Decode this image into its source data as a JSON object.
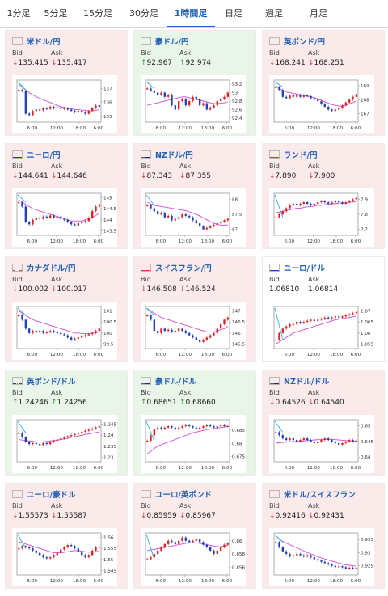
{
  "tabs": [
    {
      "label": "1分足",
      "active": false
    },
    {
      "label": "5分足",
      "active": false
    },
    {
      "label": "15分足",
      "active": false
    },
    {
      "label": "30分足",
      "active": false
    },
    {
      "label": "1時間足",
      "active": true
    },
    {
      "label": "日足",
      "active": false
    },
    {
      "label": "週足",
      "active": false
    },
    {
      "label": "月足",
      "active": false
    }
  ],
  "bid_label": "Bid",
  "ask_label": "Ask",
  "cards": [
    {
      "pair": "米ドル/円",
      "flag": "us",
      "dir": "down",
      "bid": "135.415",
      "ask": "135.417",
      "chart": {
        "ticks": [
          "137",
          "136",
          "135"
        ],
        "ylim": [
          134.6,
          137.6
        ],
        "xlabels": [
          "6:00",
          "12:00",
          "18:00",
          "6:00"
        ],
        "prices": [
          136.9,
          136.8,
          135.2,
          135.1,
          135.4,
          135.5,
          135.45,
          135.6,
          135.55,
          135.7,
          135.6,
          135.65,
          135.55,
          135.6,
          135.5,
          135.4,
          135.3,
          135.4,
          135.3,
          135.2,
          135.4,
          135.6,
          135.8,
          135.7
        ],
        "ma": [
          137.3,
          137.1,
          136.9,
          136.7,
          136.55,
          136.4,
          136.3,
          136.2,
          136.1,
          136.0,
          135.9,
          135.8,
          135.7,
          135.65,
          135.6,
          135.55,
          135.5,
          135.5,
          135.45,
          135.45,
          135.4,
          135.4,
          135.45,
          135.5
        ]
      }
    },
    {
      "pair": "豪ドル/円",
      "flag": "au",
      "dir": "up",
      "bid": "92.967",
      "ask": "92.974",
      "chart": {
        "ticks": [
          "93.2",
          "93",
          "92.8",
          "92.6",
          "92.4"
        ],
        "ylim": [
          92.3,
          93.3
        ],
        "xlabels": [
          "6:00",
          "12:00",
          "18:00",
          "6:00"
        ],
        "prices": [
          93.1,
          93.05,
          93.0,
          92.95,
          93.0,
          92.9,
          92.95,
          92.7,
          92.6,
          92.8,
          92.85,
          92.7,
          92.8,
          92.9,
          92.85,
          92.7,
          92.75,
          92.6,
          92.65,
          92.7,
          92.8,
          92.85,
          92.9,
          93.0
        ],
        "ma": [
          92.7,
          92.72,
          92.74,
          92.76,
          92.78,
          92.8,
          92.82,
          92.84,
          92.86,
          92.88,
          92.9,
          92.9,
          92.88,
          92.86,
          92.84,
          92.82,
          92.8,
          92.78,
          92.76,
          92.74,
          92.74,
          92.75,
          92.76,
          92.78
        ]
      }
    },
    {
      "pair": "英ポンド/円",
      "flag": "gb",
      "dir": "down",
      "bid": "168.241",
      "ask": "168.251",
      "chart": {
        "ticks": [
          "169",
          "168",
          "167"
        ],
        "ylim": [
          166.4,
          169.4
        ],
        "xlabels": [
          "6:00",
          "12:00",
          "18:00",
          "6:00"
        ],
        "prices": [
          168.9,
          168.7,
          168.2,
          168.1,
          168.3,
          168.2,
          168.35,
          168.2,
          168.3,
          168.25,
          168.1,
          168.0,
          167.9,
          167.7,
          167.5,
          167.3,
          167.2,
          167.3,
          167.4,
          167.6,
          167.8,
          168.0,
          168.2,
          168.4
        ],
        "ma": [
          169.0,
          168.8,
          168.65,
          168.55,
          168.5,
          168.45,
          168.4,
          168.35,
          168.3,
          168.25,
          168.2,
          168.15,
          168.05,
          167.95,
          167.85,
          167.75,
          167.65,
          167.6,
          167.55,
          167.55,
          167.6,
          167.7,
          167.8,
          167.9
        ]
      }
    },
    {
      "pair": "ユーロ/円",
      "flag": "eu",
      "dir": "down",
      "bid": "144.641",
      "ask": "144.646",
      "chart": {
        "ticks": [
          "145",
          "144.5",
          "144",
          "143.5"
        ],
        "ylim": [
          143.3,
          145.2
        ],
        "xlabels": [
          "6:00",
          "12:00",
          "18:00",
          "6:00"
        ],
        "prices": [
          144.8,
          144.6,
          143.9,
          143.8,
          144.0,
          144.1,
          144.05,
          144.15,
          144.1,
          144.2,
          144.1,
          144.15,
          144.05,
          144.0,
          143.9,
          143.8,
          143.75,
          143.85,
          143.9,
          143.95,
          144.1,
          144.4,
          144.6,
          144.7
        ],
        "ma": [
          144.9,
          144.8,
          144.7,
          144.6,
          144.5,
          144.45,
          144.4,
          144.35,
          144.3,
          144.25,
          144.2,
          144.15,
          144.1,
          144.05,
          144.0,
          143.95,
          143.95,
          143.95,
          143.95,
          144.0,
          144.05,
          144.1,
          144.2,
          144.3
        ]
      }
    },
    {
      "pair": "NZドル/円",
      "flag": "nz",
      "dir": "down",
      "bid": "87.343",
      "ask": "87.355",
      "chart": {
        "ticks": [
          "88",
          "87.5",
          "87"
        ],
        "ylim": [
          86.8,
          88.2
        ],
        "xlabels": [
          "6:00",
          "12:00",
          "18:00",
          "6:00"
        ],
        "prices": [
          87.8,
          87.7,
          87.6,
          87.5,
          87.55,
          87.4,
          87.45,
          87.3,
          87.35,
          87.4,
          87.5,
          87.45,
          87.4,
          87.3,
          87.2,
          87.1,
          87.0,
          87.05,
          87.1,
          87.15,
          87.2,
          87.25,
          87.3,
          87.35
        ],
        "ma": [
          87.9,
          87.85,
          87.8,
          87.78,
          87.76,
          87.74,
          87.72,
          87.7,
          87.68,
          87.66,
          87.64,
          87.62,
          87.58,
          87.54,
          87.5,
          87.44,
          87.38,
          87.32,
          87.26,
          87.2,
          87.16,
          87.14,
          87.14,
          87.15
        ]
      }
    },
    {
      "pair": "ランド/円",
      "flag": "za",
      "dir": "down",
      "bid": "7.890",
      "ask": "7.900",
      "chart": {
        "ticks": [
          "7.9",
          "7.8",
          "7.7"
        ],
        "ylim": [
          7.66,
          7.94
        ],
        "xlabels": [
          "6:00",
          "12:00",
          "18:00",
          "6:00"
        ],
        "prices": [
          7.78,
          7.8,
          7.82,
          7.84,
          7.86,
          7.87,
          7.86,
          7.87,
          7.88,
          7.87,
          7.86,
          7.87,
          7.88,
          7.89,
          7.88,
          7.87,
          7.88,
          7.89,
          7.88,
          7.87,
          7.88,
          7.89,
          7.9,
          7.91
        ],
        "ma": [
          7.81,
          7.815,
          7.82,
          7.825,
          7.83,
          7.835,
          7.84,
          7.84,
          7.845,
          7.85,
          7.85,
          7.855,
          7.86,
          7.86,
          7.865,
          7.865,
          7.87,
          7.87,
          7.875,
          7.875,
          7.875,
          7.88,
          7.88,
          7.885
        ]
      }
    },
    {
      "pair": "カナダドル/円",
      "flag": "ca",
      "dir": "down",
      "bid": "100.002",
      "ask": "100.017",
      "chart": {
        "ticks": [
          "101",
          "100.5",
          "100",
          "99.5"
        ],
        "ylim": [
          99.3,
          101.2
        ],
        "xlabels": [
          "6:00",
          "12:00",
          "18:00",
          "6:00"
        ],
        "prices": [
          100.8,
          100.6,
          100.2,
          100.0,
          100.1,
          100.05,
          100.1,
          100.0,
          100.05,
          100.1,
          100.05,
          100.0,
          99.95,
          99.9,
          99.8,
          99.7,
          99.75,
          99.8,
          99.85,
          99.9,
          99.95,
          100.0,
          100.1,
          100.2
        ],
        "ma": [
          101.0,
          100.9,
          100.8,
          100.7,
          100.6,
          100.55,
          100.5,
          100.45,
          100.4,
          100.35,
          100.3,
          100.25,
          100.2,
          100.15,
          100.1,
          100.05,
          100.0,
          100.0,
          99.98,
          99.98,
          99.98,
          100.0,
          100.02,
          100.05
        ]
      }
    },
    {
      "pair": "スイスフラン/円",
      "flag": "ch",
      "dir": "down",
      "bid": "146.508",
      "ask": "146.524",
      "chart": {
        "ticks": [
          "147",
          "146.5",
          "146",
          "145.5"
        ],
        "ylim": [
          145.3,
          147.2
        ],
        "xlabels": [
          "6:00",
          "12:00",
          "18:00",
          "6:00"
        ],
        "prices": [
          146.8,
          146.6,
          146.1,
          146.0,
          146.2,
          146.1,
          146.15,
          146.05,
          146.1,
          146.2,
          146.1,
          146.0,
          145.9,
          145.8,
          145.7,
          145.6,
          145.7,
          145.8,
          145.9,
          146.0,
          146.2,
          146.4,
          146.6,
          146.7
        ],
        "ma": [
          147.1,
          147.0,
          146.9,
          146.8,
          146.7,
          146.65,
          146.6,
          146.55,
          146.5,
          146.45,
          146.4,
          146.35,
          146.3,
          146.25,
          146.2,
          146.15,
          146.1,
          146.05,
          146.05,
          146.05,
          146.1,
          146.15,
          146.2,
          146.3
        ]
      }
    },
    {
      "pair": "ユーロ/ドル",
      "flag": "eu",
      "dir": "flat",
      "bid": "1.06810",
      "ask": "1.06814",
      "chart": {
        "ticks": [
          "1.07",
          "1.065",
          "1.06",
          "1.055"
        ],
        "ylim": [
          1.053,
          1.072
        ],
        "xlabels": [
          "6:00",
          "12:00",
          "18:00",
          "6:00"
        ],
        "prices": [
          1.057,
          1.06,
          1.062,
          1.063,
          1.064,
          1.064,
          1.065,
          1.0645,
          1.065,
          1.0655,
          1.066,
          1.0655,
          1.066,
          1.0665,
          1.067,
          1.0665,
          1.067,
          1.0675,
          1.067,
          1.0675,
          1.068,
          1.0685,
          1.069,
          1.0695
        ],
        "ma": [
          1.055,
          1.056,
          1.057,
          1.058,
          1.059,
          1.06,
          1.0605,
          1.061,
          1.0615,
          1.062,
          1.0625,
          1.063,
          1.0635,
          1.064,
          1.0645,
          1.065,
          1.0655,
          1.066,
          1.0662,
          1.0665,
          1.0668,
          1.067,
          1.0673,
          1.0676
        ]
      }
    },
    {
      "pair": "英ポンド/ドル",
      "flag": "gb",
      "dir": "up",
      "bid": "1.24246",
      "ask": "1.24256",
      "chart": {
        "ticks": [
          "1.245",
          "1.24",
          "1.235",
          "1.23"
        ],
        "ylim": [
          1.228,
          1.247
        ],
        "xlabels": [
          "6:00",
          "12:00",
          "18:00",
          "6:00"
        ],
        "prices": [
          1.241,
          1.239,
          1.237,
          1.236,
          1.2365,
          1.236,
          1.2355,
          1.2365,
          1.236,
          1.237,
          1.2375,
          1.238,
          1.2385,
          1.239,
          1.2395,
          1.24,
          1.2405,
          1.241,
          1.2415,
          1.242,
          1.2425,
          1.243,
          1.2435,
          1.244
        ],
        "ma": [
          1.238,
          1.2378,
          1.2376,
          1.2374,
          1.2372,
          1.237,
          1.237,
          1.237,
          1.2372,
          1.2374,
          1.2376,
          1.2378,
          1.238,
          1.2383,
          1.2386,
          1.239,
          1.2393,
          1.2396,
          1.24,
          1.2403,
          1.2406,
          1.2409,
          1.2412,
          1.2415
        ]
      }
    },
    {
      "pair": "豪ドル/ドル",
      "flag": "au",
      "dir": "up",
      "bid": "0.68651",
      "ask": "0.68660",
      "chart": {
        "ticks": [
          "0.685",
          "0.68",
          "0.675"
        ],
        "ylim": [
          0.673,
          0.689
        ],
        "xlabels": [
          "6:00",
          "12:00",
          "18:00",
          "6:00"
        ],
        "prices": [
          0.681,
          0.683,
          0.6855,
          0.686,
          0.6855,
          0.686,
          0.6865,
          0.686,
          0.6855,
          0.686,
          0.6865,
          0.687,
          0.6865,
          0.686,
          0.6855,
          0.686,
          0.6865,
          0.687,
          0.6865,
          0.686,
          0.6865,
          0.687,
          0.6865,
          0.6866
        ],
        "ma": [
          0.676,
          0.677,
          0.678,
          0.679,
          0.6795,
          0.68,
          0.6805,
          0.681,
          0.6815,
          0.682,
          0.6825,
          0.683,
          0.6835,
          0.684,
          0.6843,
          0.6846,
          0.6849,
          0.6852,
          0.6854,
          0.6856,
          0.6858,
          0.686,
          0.6862,
          0.6864
        ]
      }
    },
    {
      "pair": "NZドル/ドル",
      "flag": "nz",
      "dir": "down",
      "bid": "0.64526",
      "ask": "0.64540",
      "chart": {
        "ticks": [
          "0.65",
          "0.645",
          "0.64"
        ],
        "ylim": [
          0.6385,
          0.652
        ],
        "xlabels": [
          "6:00",
          "12:00",
          "18:00",
          "6:00"
        ],
        "prices": [
          0.648,
          0.647,
          0.646,
          0.6455,
          0.646,
          0.6455,
          0.645,
          0.6455,
          0.646,
          0.6455,
          0.645,
          0.6445,
          0.645,
          0.6455,
          0.646,
          0.6455,
          0.645,
          0.6445,
          0.644,
          0.6445,
          0.645,
          0.6455,
          0.645,
          0.6453
        ],
        "ma": [
          0.6445,
          0.6446,
          0.6447,
          0.6448,
          0.6449,
          0.645,
          0.645,
          0.6451,
          0.6452,
          0.6453,
          0.6454,
          0.6455,
          0.6456,
          0.6456,
          0.6457,
          0.6457,
          0.6457,
          0.6456,
          0.6455,
          0.6454,
          0.6453,
          0.6452,
          0.6452,
          0.6451
        ]
      }
    },
    {
      "pair": "ユーロ/豪ドル",
      "flag": "eu",
      "dir": "down",
      "bid": "1.55573",
      "ask": "1.55587",
      "chart": {
        "ticks": [
          "1.56",
          "1.555",
          "1.55",
          "1.545"
        ],
        "ylim": [
          1.543,
          1.562
        ],
        "xlabels": [
          "6:00",
          "12:00",
          "18:00",
          "6:00"
        ],
        "prices": [
          1.555,
          1.556,
          1.5555,
          1.555,
          1.554,
          1.553,
          1.552,
          1.551,
          1.5505,
          1.551,
          1.552,
          1.553,
          1.5545,
          1.5555,
          1.5565,
          1.556,
          1.555,
          1.5535,
          1.552,
          1.551,
          1.552,
          1.554,
          1.5555,
          1.5557
        ],
        "ma": [
          1.558,
          1.5575,
          1.557,
          1.5565,
          1.556,
          1.5555,
          1.555,
          1.5545,
          1.554,
          1.5535,
          1.553,
          1.553,
          1.553,
          1.5532,
          1.5535,
          1.5538,
          1.554,
          1.554,
          1.5538,
          1.5535,
          1.5533,
          1.5533,
          1.5535,
          1.5538
        ]
      }
    },
    {
      "pair": "ユーロ/英ポンド",
      "flag": "eu",
      "dir": "down",
      "bid": "0.85959",
      "ask": "0.85967",
      "chart": {
        "ticks": [
          "0.86",
          "0.858",
          "0.856"
        ],
        "ylim": [
          0.8548,
          0.8612
        ],
        "xlabels": [
          "6:00",
          "12:00",
          "18:00",
          "6:00"
        ],
        "prices": [
          0.8572,
          0.8575,
          0.858,
          0.8585,
          0.859,
          0.8595,
          0.86,
          0.8598,
          0.8595,
          0.86,
          0.8605,
          0.86,
          0.8598,
          0.86,
          0.8602,
          0.8598,
          0.8594,
          0.859,
          0.8585,
          0.858,
          0.8585,
          0.859,
          0.8594,
          0.8596
        ],
        "ma": [
          0.8585,
          0.8586,
          0.8587,
          0.8588,
          0.8589,
          0.859,
          0.8591,
          0.8592,
          0.8593,
          0.8594,
          0.8595,
          0.8596,
          0.8597,
          0.8597,
          0.8597,
          0.8596,
          0.8595,
          0.8594,
          0.8593,
          0.8592,
          0.8591,
          0.8591,
          0.8592,
          0.8593
        ]
      }
    },
    {
      "pair": "米ドル/スイスフラン",
      "flag": "us",
      "dir": "down",
      "bid": "0.92416",
      "ask": "0.92431",
      "chart": {
        "ticks": [
          "0.935",
          "0.93",
          "0.925"
        ],
        "ylim": [
          0.9215,
          0.9375
        ],
        "xlabels": [
          "6:00",
          "12:00",
          "18:00",
          "6:00"
        ],
        "prices": [
          0.934,
          0.932,
          0.9305,
          0.9295,
          0.9285,
          0.929,
          0.9295,
          0.929,
          0.9285,
          0.929,
          0.9282,
          0.9275,
          0.927,
          0.9265,
          0.926,
          0.9255,
          0.925,
          0.9245,
          0.9248,
          0.9245,
          0.924,
          0.9243,
          0.924,
          0.9242
        ],
        "ma": [
          0.9355,
          0.935,
          0.9343,
          0.9336,
          0.933,
          0.9324,
          0.9318,
          0.9312,
          0.9306,
          0.93,
          0.9295,
          0.929,
          0.9285,
          0.928,
          0.9276,
          0.9272,
          0.9268,
          0.9264,
          0.926,
          0.9257,
          0.9254,
          0.9252,
          0.925,
          0.9248
        ]
      }
    }
  ]
}
